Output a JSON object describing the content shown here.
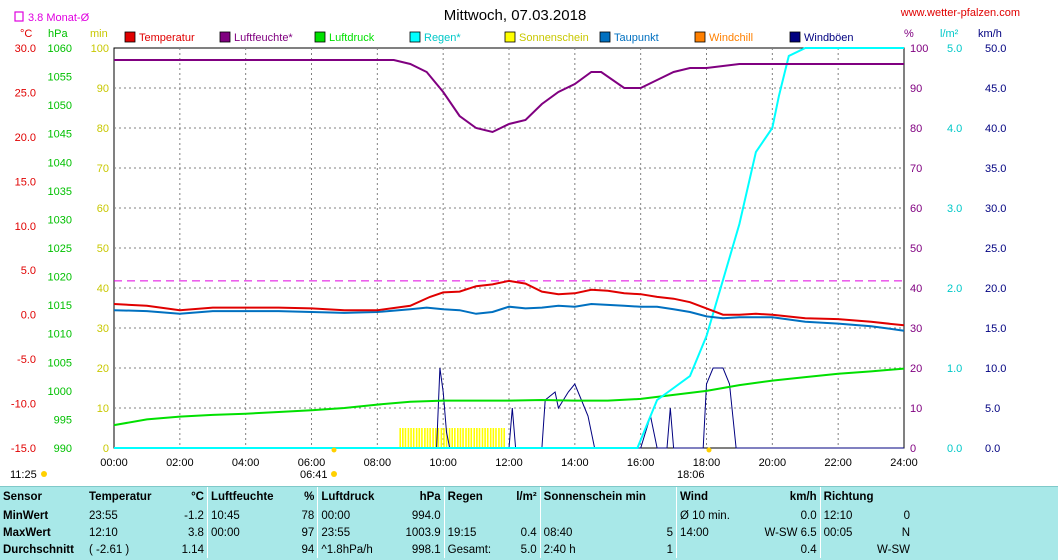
{
  "title": "Mittwoch, 07.03.2018",
  "website": "www.wetter-pfalzen.com",
  "avg_note": "3.8 Monat-Ø",
  "units": {
    "temp": "°C",
    "pressure": "hPa",
    "minutes": "min",
    "percent": "%",
    "rain": "l/m²",
    "wind": "km/h"
  },
  "legend": [
    {
      "label": "Temperatur",
      "color": "#e00000"
    },
    {
      "label": "Luftfeuchte*",
      "color": "#800080"
    },
    {
      "label": "Luftdruck",
      "color": "#00e000"
    },
    {
      "label": "Regen*",
      "color": "#00ffff"
    },
    {
      "label": "Sonnenschein",
      "color": "#ffff00"
    },
    {
      "label": "Taupunkt",
      "color": "#0070c0"
    },
    {
      "label": "Windchill",
      "color": "#ff8000"
    },
    {
      "label": "Windböen",
      "color": "#000080"
    }
  ],
  "axes": {
    "temp_ticks": [
      "30.0",
      "25.0",
      "20.0",
      "15.0",
      "10.0",
      "5.0",
      "0.0",
      "-5.0",
      "-10.0",
      "-15.0"
    ],
    "pressure_ticks": [
      "1060",
      "1055",
      "1050",
      "1045",
      "1040",
      "1035",
      "1030",
      "1025",
      "1020",
      "1015",
      "1010",
      "1005",
      "1000",
      "995",
      "990"
    ],
    "minute_ticks": [
      "100",
      "90",
      "80",
      "70",
      "60",
      "50",
      "40",
      "30",
      "20",
      "10",
      "0"
    ],
    "percent_ticks": [
      "100",
      "90",
      "80",
      "70",
      "60",
      "50",
      "40",
      "30",
      "20",
      "10",
      "0"
    ],
    "rain_ticks": [
      "5.0",
      "4.0",
      "3.0",
      "2.0",
      "1.0",
      "0.0"
    ],
    "wind_ticks": [
      "50.0",
      "45.0",
      "40.0",
      "35.0",
      "30.0",
      "25.0",
      "20.0",
      "15.0",
      "10.0",
      "5.0",
      "0.0"
    ],
    "x_ticks": [
      "00:00",
      "02:00",
      "04:00",
      "06:00",
      "08:00",
      "10:00",
      "12:00",
      "14:00",
      "16:00",
      "18:00",
      "20:00",
      "22:00",
      "24:00"
    ],
    "sunrise": "06:41",
    "sunset": "18:06",
    "daylength": "11:25"
  },
  "chart_data": {
    "type": "line",
    "x_range": [
      0,
      24
    ],
    "x_unit": "hours",
    "ylim_temp": [
      -15,
      30
    ],
    "ylim_pressure": [
      990,
      1060
    ],
    "ylim_percent": [
      0,
      100
    ],
    "ylim_rain": [
      0,
      5
    ],
    "ylim_wind": [
      0,
      50
    ],
    "monthly_avg_temp": 3.8,
    "series": [
      {
        "name": "Temperatur",
        "color": "#e00000",
        "axis": "temp",
        "points": [
          [
            0,
            1.2
          ],
          [
            1,
            1.0
          ],
          [
            2,
            0.5
          ],
          [
            3,
            0.8
          ],
          [
            4,
            0.8
          ],
          [
            5,
            0.8
          ],
          [
            6,
            0.7
          ],
          [
            7,
            0.5
          ],
          [
            8,
            0.5
          ],
          [
            9,
            1.0
          ],
          [
            9.6,
            2.0
          ],
          [
            10,
            2.5
          ],
          [
            10.5,
            2.6
          ],
          [
            11,
            3.2
          ],
          [
            11.5,
            3.4
          ],
          [
            12,
            3.8
          ],
          [
            12.5,
            3.5
          ],
          [
            13,
            2.6
          ],
          [
            13.5,
            2.3
          ],
          [
            14,
            2.4
          ],
          [
            14.5,
            2.8
          ],
          [
            15,
            2.7
          ],
          [
            15.5,
            2.4
          ],
          [
            16,
            2.3
          ],
          [
            16.5,
            2.0
          ],
          [
            17,
            1.8
          ],
          [
            17.5,
            1.4
          ],
          [
            18,
            0.7
          ],
          [
            18.5,
            0.0
          ],
          [
            19,
            0.0
          ],
          [
            19.5,
            0.1
          ],
          [
            20,
            0.0
          ],
          [
            21,
            -0.4
          ],
          [
            22,
            -0.5
          ],
          [
            23,
            -0.8
          ],
          [
            24,
            -1.2
          ]
        ]
      },
      {
        "name": "Taupunkt",
        "color": "#0070c0",
        "axis": "temp",
        "points": [
          [
            0,
            0.5
          ],
          [
            1,
            0.4
          ],
          [
            2,
            0.1
          ],
          [
            3,
            0.4
          ],
          [
            4,
            0.4
          ],
          [
            5,
            0.4
          ],
          [
            6,
            0.3
          ],
          [
            7,
            0.2
          ],
          [
            8,
            0.3
          ],
          [
            9,
            0.6
          ],
          [
            9.5,
            0.8
          ],
          [
            10,
            0.6
          ],
          [
            10.5,
            0.5
          ],
          [
            11,
            0.1
          ],
          [
            11.5,
            0.3
          ],
          [
            12,
            0.9
          ],
          [
            12.5,
            0.7
          ],
          [
            13,
            0.8
          ],
          [
            13.5,
            1.0
          ],
          [
            14,
            0.9
          ],
          [
            14.5,
            1.2
          ],
          [
            15,
            1.1
          ],
          [
            15.5,
            1.0
          ],
          [
            16,
            0.9
          ],
          [
            16.5,
            0.9
          ],
          [
            17,
            0.6
          ],
          [
            17.5,
            0.3
          ],
          [
            18,
            -0.2
          ],
          [
            18.5,
            -0.4
          ],
          [
            19,
            -0.3
          ],
          [
            20,
            -0.3
          ],
          [
            21,
            -0.8
          ],
          [
            22,
            -1.0
          ],
          [
            23,
            -1.3
          ],
          [
            24,
            -1.8
          ]
        ]
      },
      {
        "name": "Luftfeuchte*",
        "color": "#800080",
        "axis": "percent",
        "points": [
          [
            0,
            97
          ],
          [
            8.5,
            97
          ],
          [
            9,
            96
          ],
          [
            9.5,
            94
          ],
          [
            10,
            89
          ],
          [
            10.5,
            83
          ],
          [
            11,
            80
          ],
          [
            11.5,
            79
          ],
          [
            12,
            81
          ],
          [
            12.5,
            82
          ],
          [
            13,
            86
          ],
          [
            13.5,
            89
          ],
          [
            14,
            91
          ],
          [
            14.5,
            94
          ],
          [
            14.8,
            94
          ],
          [
            15.5,
            90
          ],
          [
            16,
            90
          ],
          [
            16.5,
            92
          ],
          [
            17,
            94
          ],
          [
            17.5,
            95
          ],
          [
            18,
            95
          ],
          [
            19,
            96
          ],
          [
            20,
            96
          ],
          [
            22,
            96
          ],
          [
            24,
            96
          ]
        ]
      },
      {
        "name": "Luftdruck",
        "color": "#00e000",
        "axis": "pressure",
        "points": [
          [
            0,
            994.0
          ],
          [
            1,
            995.0
          ],
          [
            2,
            995.5
          ],
          [
            3,
            995.8
          ],
          [
            4,
            996.0
          ],
          [
            5,
            996.3
          ],
          [
            6,
            996.6
          ],
          [
            7,
            997.0
          ],
          [
            8,
            997.6
          ],
          [
            9,
            998.1
          ],
          [
            10,
            998.3
          ],
          [
            11,
            998.3
          ],
          [
            12,
            998.3
          ],
          [
            13,
            998.4
          ],
          [
            14,
            998.3
          ],
          [
            15,
            998.3
          ],
          [
            16,
            998.6
          ],
          [
            17,
            999.3
          ],
          [
            18,
            1000.0
          ],
          [
            19,
            1001.0
          ],
          [
            20,
            1001.8
          ],
          [
            21,
            1002.4
          ],
          [
            22,
            1003.0
          ],
          [
            23,
            1003.4
          ],
          [
            24,
            1003.9
          ]
        ]
      },
      {
        "name": "Regen*",
        "color": "#00ffff",
        "axis": "rain",
        "points": [
          [
            0,
            0
          ],
          [
            15.9,
            0
          ],
          [
            16.5,
            0.6
          ],
          [
            17,
            0.75
          ],
          [
            17.5,
            0.9
          ],
          [
            18,
            1.4
          ],
          [
            18.5,
            2.1
          ],
          [
            19,
            2.8
          ],
          [
            19.5,
            3.7
          ],
          [
            20,
            4.0
          ],
          [
            20.2,
            4.4
          ],
          [
            20.5,
            4.9
          ],
          [
            21,
            5.0
          ],
          [
            24,
            5.0
          ]
        ]
      },
      {
        "name": "Windböen",
        "color": "#000080",
        "axis": "wind",
        "points": [
          [
            0,
            0
          ],
          [
            9.8,
            0
          ],
          [
            9.9,
            10
          ],
          [
            10,
            7
          ],
          [
            10.1,
            2
          ],
          [
            10.2,
            0
          ],
          [
            12,
            0
          ],
          [
            12.1,
            5
          ],
          [
            12.2,
            0
          ],
          [
            13.0,
            0
          ],
          [
            13.1,
            6
          ],
          [
            13.4,
            7
          ],
          [
            13.5,
            5
          ],
          [
            13.8,
            7
          ],
          [
            14.0,
            8
          ],
          [
            14.2,
            6
          ],
          [
            14.4,
            4
          ],
          [
            14.6,
            0
          ],
          [
            16.0,
            0
          ],
          [
            16.3,
            4
          ],
          [
            16.5,
            0
          ],
          [
            16.8,
            0
          ],
          [
            16.9,
            5
          ],
          [
            17.0,
            0
          ],
          [
            17.9,
            0
          ],
          [
            18.0,
            8
          ],
          [
            18.2,
            10
          ],
          [
            18.5,
            10
          ],
          [
            18.7,
            8
          ],
          [
            18.8,
            4
          ],
          [
            18.9,
            0
          ],
          [
            24,
            0
          ]
        ]
      },
      {
        "name": "Sonnenschein",
        "color": "#ffff00",
        "axis": "minutes",
        "bars": [
          [
            8.67,
            8.67
          ],
          [
            8.75,
            8.75
          ],
          [
            8.83,
            8.83
          ],
          [
            8.92,
            8.92
          ],
          [
            9.0,
            9.0
          ],
          [
            9.08,
            9.08
          ],
          [
            9.17,
            9.17
          ],
          [
            9.25,
            9.25
          ],
          [
            9.33,
            9.33
          ],
          [
            9.42,
            9.42
          ],
          [
            9.5,
            9.5
          ],
          [
            9.58,
            9.58
          ],
          [
            9.67,
            9.67
          ],
          [
            9.75,
            9.75
          ],
          [
            9.83,
            9.83
          ],
          [
            9.92,
            9.92
          ],
          [
            10.0,
            10.0
          ],
          [
            10.08,
            10.08
          ],
          [
            10.17,
            10.17
          ],
          [
            10.25,
            10.25
          ],
          [
            10.33,
            10.33
          ],
          [
            10.42,
            10.42
          ],
          [
            10.5,
            10.5
          ],
          [
            10.58,
            10.58
          ],
          [
            10.67,
            10.67
          ],
          [
            10.75,
            10.75
          ],
          [
            10.83,
            10.83
          ],
          [
            10.92,
            10.92
          ],
          [
            11.0,
            11.0
          ],
          [
            11.08,
            11.08
          ],
          [
            11.17,
            11.17
          ],
          [
            11.25,
            11.25
          ],
          [
            11.33,
            11.33
          ],
          [
            11.42,
            11.42
          ],
          [
            11.5,
            11.5
          ],
          [
            11.58,
            11.58
          ],
          [
            11.67,
            11.67
          ],
          [
            11.75,
            11.75
          ],
          [
            11.83,
            11.83
          ]
        ],
        "bar_height_minutes": 5
      }
    ]
  },
  "stats": {
    "headers": {
      "sensor": "Sensor",
      "temperature": "Temperatur",
      "temperature_unit": "°C",
      "humidity": "Luftfeuchte",
      "humidity_unit": "%",
      "pressure": "Luftdruck",
      "pressure_unit": "hPa",
      "rain": "Regen",
      "rain_unit": "l/m²",
      "sun": "Sonnenschein min",
      "wind": "Wind",
      "wind_unit": "km/h",
      "direction": "Richtung"
    },
    "rows": [
      {
        "label": "MinWert",
        "t_time": "23:55",
        "t_val": "-1.2",
        "h_time": "10:45",
        "h_val": "78",
        "p_time": "00:00",
        "p_val": "994.0",
        "r_time": "",
        "r_val": "",
        "s_time": "",
        "s_val": "",
        "w_time": "Ø 10 min.",
        "w_val": "0.0",
        "d_time": "12:10",
        "d_val": "0"
      },
      {
        "label": "MaxWert",
        "t_time": "12:10",
        "t_val": "3.8",
        "h_time": "00:00",
        "h_val": "97",
        "p_time": "23:55",
        "p_val": "1003.9",
        "r_time": "19:15",
        "r_val": "0.4",
        "s_time": "08:40",
        "s_val": "5",
        "w_time": "14:00",
        "w_val": "W-SW 6.5",
        "d_time": "00:05",
        "d_val": "N"
      },
      {
        "label": "Durchschnitt",
        "t_time": "( -2.61 )",
        "t_val": "1.14",
        "h_time": "",
        "h_val": "94",
        "p_time": "^1.8hPa/h",
        "p_val": "998.1",
        "r_time": "Gesamt:",
        "r_val": "5.0",
        "s_time": "2:40 h",
        "s_val": "1",
        "w_time": "",
        "w_val": "0.4",
        "d_time": "",
        "d_val": "W-SW"
      }
    ]
  }
}
